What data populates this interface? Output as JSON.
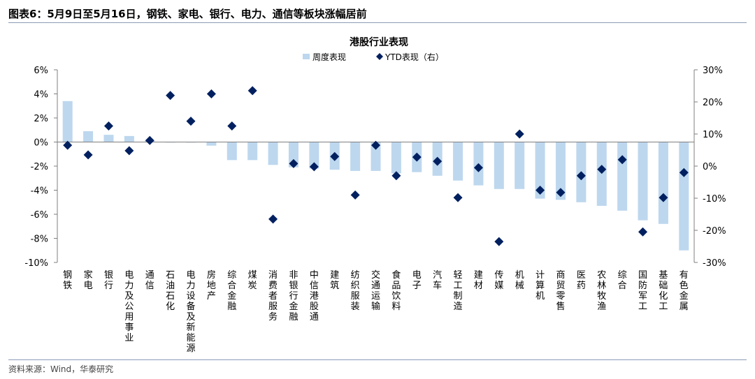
{
  "figure": {
    "title": "图表6：5月9日至5月16日，钢铁、家电、银行、电力、通信等板块涨幅居前",
    "source": "资料来源：Wind，华泰研究"
  },
  "colors": {
    "bar": "#bdd7ee",
    "marker": "#002060",
    "axis": "#7f7f7f",
    "rule": "#8a9bb5"
  },
  "chart_data": {
    "type": "bar",
    "title": "港股行业表现",
    "legend_position": "top-center",
    "grid": false,
    "categories": [
      "钢铁",
      "家电",
      "银行",
      "电力及公用事业",
      "通信",
      "石油石化",
      "电力设备及新能源",
      "房地产",
      "综合金融",
      "煤炭",
      "消费者服务",
      "非银行金融",
      "中信港股通",
      "建筑",
      "纺织服装",
      "交通运输",
      "食品饮料",
      "电子",
      "汽车",
      "轻工制造",
      "建材",
      "传媒",
      "机械",
      "计算机",
      "商贸零售",
      "医药",
      "农林牧渔",
      "综合",
      "国防军工",
      "基础化工",
      "有色金属"
    ],
    "series": [
      {
        "name": "周度表现",
        "type": "bar",
        "axis": "left",
        "values": [
          3.4,
          0.9,
          0.6,
          0.5,
          0.1,
          0.0,
          0.0,
          -0.3,
          -1.5,
          -1.5,
          -1.9,
          -2.1,
          -2.2,
          -2.3,
          -2.4,
          -2.4,
          -2.6,
          -2.5,
          -2.8,
          -3.2,
          -3.6,
          -3.9,
          -3.9,
          -4.7,
          -4.8,
          -5.0,
          -5.3,
          -5.7,
          -6.5,
          -6.8,
          -9.0
        ]
      },
      {
        "name": "YTD表现（右）",
        "type": "scatter",
        "marker": "diamond",
        "axis": "right",
        "values": [
          6.5,
          3.5,
          12.5,
          4.8,
          8.0,
          22.0,
          14.0,
          22.5,
          12.5,
          23.5,
          -16.5,
          0.8,
          -0.2,
          3.0,
          -9.0,
          6.5,
          -3.0,
          2.8,
          1.5,
          -9.8,
          -0.5,
          -23.5,
          10.0,
          -7.5,
          -8.2,
          -3.0,
          -1.0,
          2.0,
          -20.5,
          -9.8,
          -2.0
        ]
      }
    ],
    "y_left": {
      "min": -10,
      "max": 6,
      "step": 2,
      "unit": "%"
    },
    "y_right": {
      "min": -30,
      "max": 30,
      "step": 10,
      "unit": "%"
    }
  }
}
